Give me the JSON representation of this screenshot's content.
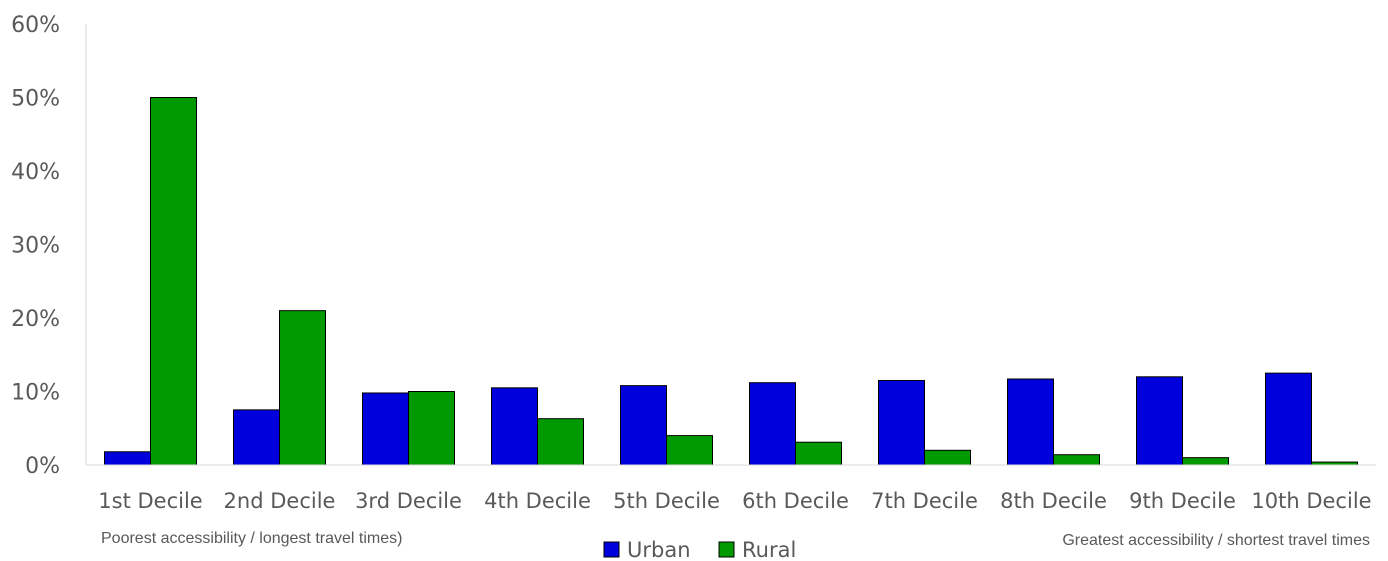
{
  "chart_data": {
    "type": "bar",
    "categories": [
      "1st Decile",
      "2nd Decile",
      "3rd Decile",
      "4th Decile",
      "5th Decile",
      "6th Decile",
      "7th Decile",
      "8th Decile",
      "9th Decile",
      "10th Decile"
    ],
    "series": [
      {
        "name": "Urban",
        "color": "#0000dd",
        "values": [
          1.8,
          7.5,
          9.8,
          10.5,
          10.8,
          11.2,
          11.5,
          11.7,
          12.0,
          12.5
        ]
      },
      {
        "name": "Rural",
        "color": "#009900",
        "values": [
          50.0,
          21.0,
          10.0,
          6.3,
          4.0,
          3.1,
          2.0,
          1.4,
          1.0,
          0.4
        ]
      }
    ],
    "y_ticks": [
      "0%",
      "10%",
      "20%",
      "30%",
      "40%",
      "50%",
      "60%"
    ],
    "ylim": [
      0,
      60
    ],
    "title": "",
    "xlabel": "",
    "ylabel": "",
    "grid": false,
    "legend": "bottom-center",
    "annotations": {
      "left": "Poorest  accessibility  / longest  travel times)",
      "right": "Greatest accessibility  / shortest  travel times"
    }
  }
}
